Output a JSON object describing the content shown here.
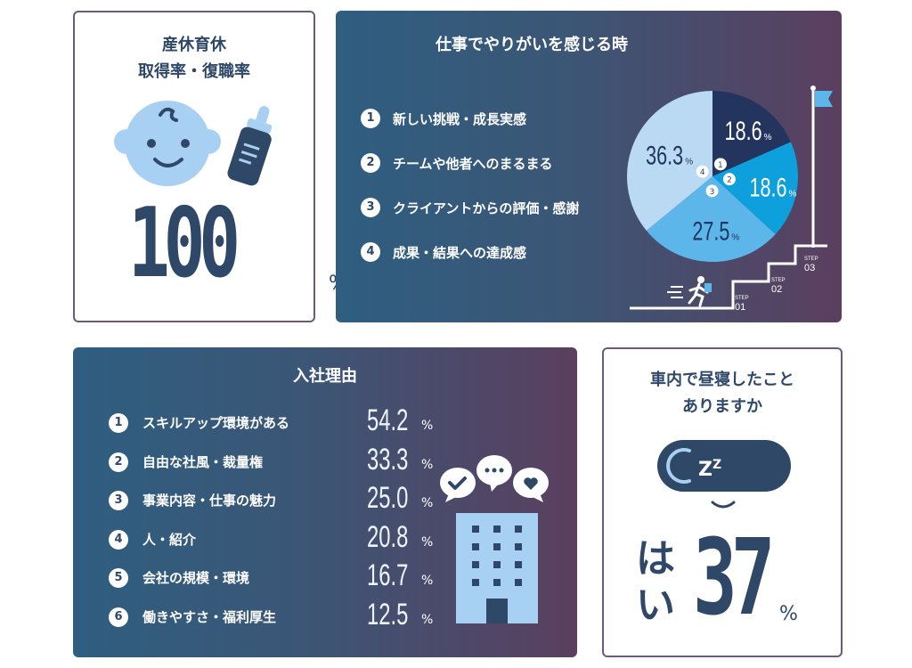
{
  "card_leave": {
    "title_line1": "産休育休",
    "title_line2": "取得率・復職率",
    "value": "100",
    "unit": "%"
  },
  "card_motivation": {
    "title": "仕事でやりがいを感じる時",
    "legend": [
      {
        "num": "1",
        "label": "新しい挑戦・成長実感"
      },
      {
        "num": "2",
        "label": "チームや他者へのまるまる"
      },
      {
        "num": "3",
        "label": "クライアントからの評価・感謝"
      },
      {
        "num": "4",
        "label": "成果・結果への達成感"
      }
    ],
    "steps": [
      {
        "label": "STEP",
        "num": "01"
      },
      {
        "label": "STEP",
        "num": "02"
      },
      {
        "label": "STEP",
        "num": "03"
      }
    ]
  },
  "card_reasons": {
    "title": "入社理由",
    "items": [
      {
        "num": "1",
        "label": "スキルアップ環境がある",
        "value": "54.2",
        "unit": "%"
      },
      {
        "num": "2",
        "label": "自由な社風・裁量権",
        "value": "33.3",
        "unit": "%"
      },
      {
        "num": "3",
        "label": "事業内容・仕事の魅力",
        "value": "25.0",
        "unit": "%"
      },
      {
        "num": "4",
        "label": "人・紹介",
        "value": "20.8",
        "unit": "%"
      },
      {
        "num": "5",
        "label": "会社の規模・環境",
        "value": "16.7",
        "unit": "%"
      },
      {
        "num": "6",
        "label": "働きやすさ・福利厚生",
        "value": "12.5",
        "unit": "%"
      }
    ]
  },
  "card_nap": {
    "title_line1": "車内で昼寝したこと",
    "title_line2": "ありますか",
    "answer_line1": "は",
    "answer_line2": "い",
    "value": "37",
    "unit": "%"
  },
  "chart_data": [
    {
      "type": "pie",
      "title": "仕事でやりがいを感じる時",
      "slices": [
        {
          "num": "1",
          "name": "新しい挑戦・成長実感",
          "value": 18.6,
          "label": "18.6",
          "color": "#23355e",
          "label_color": "#ffffff",
          "label_r": 0.66,
          "circle_r": 0.17
        },
        {
          "num": "2",
          "name": "チームや他者へのまるまる",
          "value": 18.6,
          "label": "18.6",
          "color": "#0e9fdd",
          "label_color": "#ffffff",
          "label_r": 0.66,
          "circle_r": 0.2
        },
        {
          "num": "3",
          "name": "クライアントからの評価・感謝",
          "value": 27.5,
          "label": "27.5",
          "color": "#5cb6ea",
          "label_color": "#23355e",
          "label_r": 0.62,
          "circle_r": 0.17
        },
        {
          "num": "4",
          "name": "成果・結果への達成感",
          "value": 36.3,
          "label": "36.3",
          "color": "#bad9f2",
          "label_color": "#23355e",
          "label_r": 0.62,
          "circle_r": 0.13
        }
      ],
      "unit": "%",
      "start_angle": 0,
      "direction": "clockwise"
    },
    {
      "type": "table",
      "title": "入社理由",
      "categories": [
        "スキルアップ環境がある",
        "自由な社風・裁量権",
        "事業内容・仕事の魅力",
        "人・紹介",
        "会社の規模・環境",
        "働きやすさ・福利厚生"
      ],
      "values": [
        54.2,
        33.3,
        25.0,
        20.8,
        16.7,
        12.5
      ],
      "unit": "%"
    }
  ],
  "colors": {
    "navy": "#2f4868",
    "border": "#6b5b78",
    "gradient_start": "#2f5e80",
    "gradient_end": "#5b3f5f",
    "light_blue": "#a8d0f3"
  },
  "icons": [
    "baby-face-icon",
    "baby-bottle-icon",
    "flag-icon",
    "running-person-icon",
    "checkmark-bubble-icon",
    "ellipsis-bubble-icon",
    "heart-bubble-icon",
    "office-building-icon",
    "sleep-mask-icon"
  ]
}
